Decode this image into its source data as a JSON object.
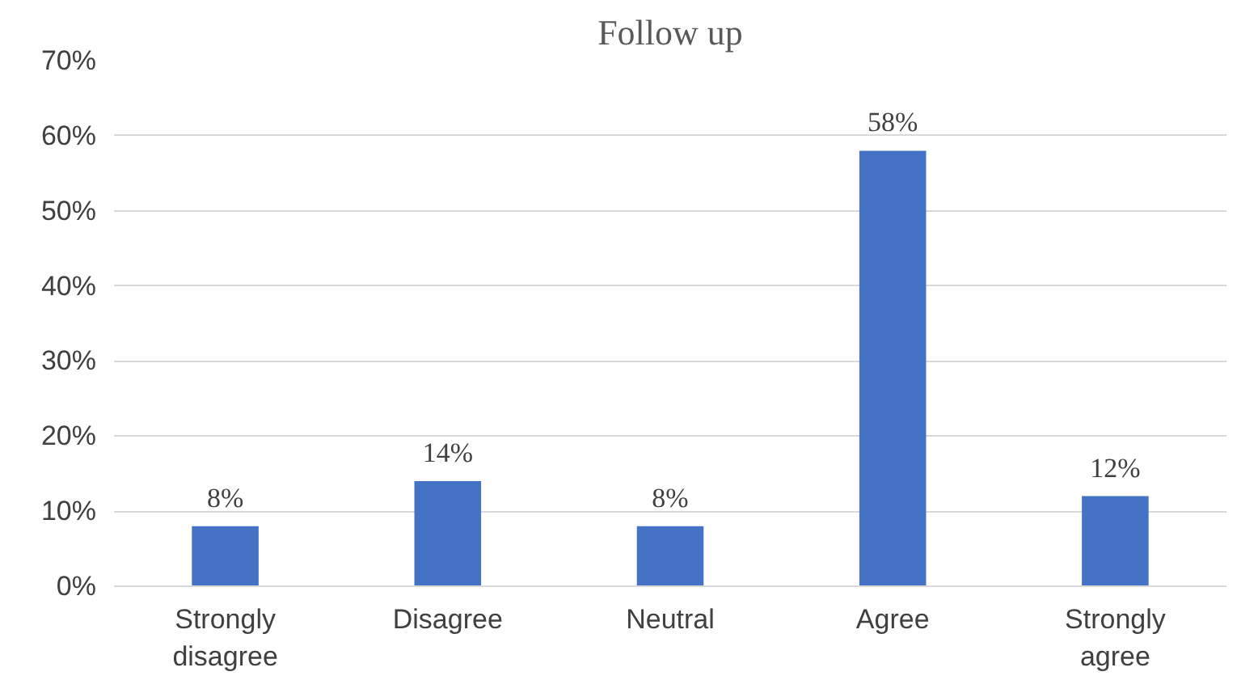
{
  "chart_data": {
    "type": "bar",
    "title": "Follow up",
    "categories": [
      "Strongly disagree",
      "Disagree",
      "Neutral",
      "Agree",
      "Strongly agree"
    ],
    "values": [
      8,
      14,
      8,
      58,
      12
    ],
    "value_labels": [
      "8%",
      "14%",
      "8%",
      "58%",
      "12%"
    ],
    "color": "#4472c4",
    "ylim": [
      0,
      70
    ],
    "yticks": [
      {
        "value": 0,
        "label": "0%"
      },
      {
        "value": 10,
        "label": "10%"
      },
      {
        "value": 20,
        "label": "20%"
      },
      {
        "value": 30,
        "label": "30%"
      },
      {
        "value": 40,
        "label": "40%"
      },
      {
        "value": 50,
        "label": "50%"
      },
      {
        "value": 60,
        "label": "60%"
      },
      {
        "value": 70,
        "label": "70%"
      }
    ],
    "grid": "y"
  }
}
